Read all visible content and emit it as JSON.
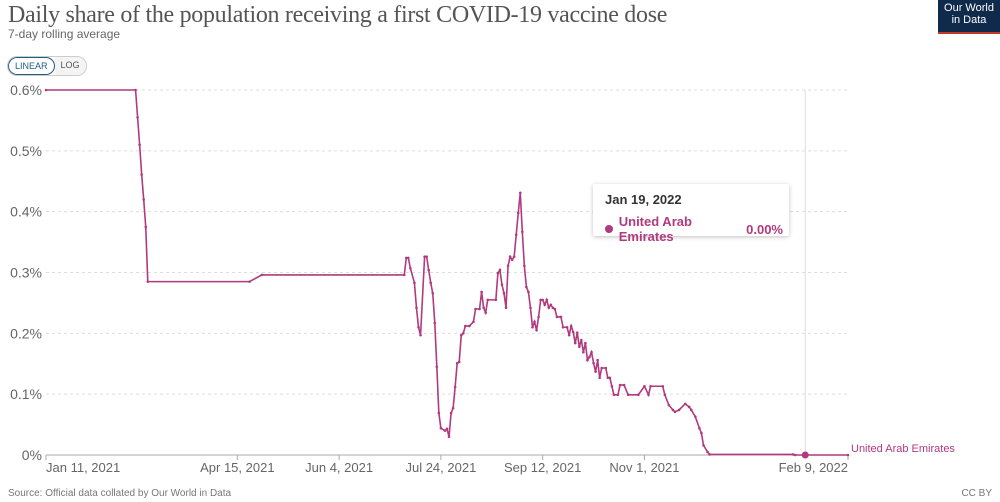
{
  "header": {
    "title": "Daily share of the population receiving a first COVID-19 vaccine dose",
    "subtitle": "7-day rolling average",
    "logo_text": "Our World in Data"
  },
  "scale_toggle": {
    "options": [
      "LINEAR",
      "LOG"
    ],
    "selected": "LINEAR"
  },
  "tooltip": {
    "date": "Jan 19, 2022",
    "series": "United Arab Emirates",
    "value": "0.00%"
  },
  "footer": {
    "source": "Source: Official data collated by Our World in Data",
    "license": "CC BY"
  },
  "colors": {
    "series": "#b13a7e",
    "grid": "#dddddd"
  },
  "chart_data": {
    "type": "line",
    "title": "Daily share of the population receiving a first COVID-19 vaccine dose",
    "subtitle": "7-day rolling average",
    "xlim": [
      "2021-01-11",
      "2022-02-09"
    ],
    "ylim": [
      0,
      0.6
    ],
    "y_unit": "%",
    "y_ticks": [
      0,
      0.1,
      0.2,
      0.3,
      0.4,
      0.5,
      0.6
    ],
    "y_tick_labels": [
      "0%",
      "0.1%",
      "0.2%",
      "0.3%",
      "0.4%",
      "0.5%",
      "0.6%"
    ],
    "x_ticks": [
      "2021-01-11",
      "2021-04-15",
      "2021-06-04",
      "2021-07-24",
      "2021-09-12",
      "2021-11-01",
      "2022-02-09"
    ],
    "x_tick_labels": [
      "Jan 11, 2021",
      "Apr 15, 2021",
      "Jun 4, 2021",
      "Jul 24, 2021",
      "Sep 12, 2021",
      "Nov 1, 2021",
      "Feb 9, 2022"
    ],
    "grid": "horizontal dotted",
    "hover_date": "2022-01-19",
    "series": [
      {
        "name": "United Arab Emirates",
        "points": [
          [
            "2021-01-11",
            0.6
          ],
          [
            "2021-02-24",
            0.6
          ],
          [
            "2021-02-25",
            0.555
          ],
          [
            "2021-02-26",
            0.51
          ],
          [
            "2021-02-27",
            0.461
          ],
          [
            "2021-02-28",
            0.42
          ],
          [
            "2021-03-01",
            0.375
          ],
          [
            "2021-03-02",
            0.285
          ],
          [
            "2021-04-21",
            0.285
          ],
          [
            "2021-04-27",
            0.296
          ],
          [
            "2021-07-06",
            0.296
          ],
          [
            "2021-07-07",
            0.324
          ],
          [
            "2021-07-08",
            0.324
          ],
          [
            "2021-07-09",
            0.307
          ],
          [
            "2021-07-11",
            0.283
          ],
          [
            "2021-07-12",
            0.242
          ],
          [
            "2021-07-13",
            0.21
          ],
          [
            "2021-07-14",
            0.197
          ],
          [
            "2021-07-16",
            0.326
          ],
          [
            "2021-07-17",
            0.326
          ],
          [
            "2021-07-18",
            0.304
          ],
          [
            "2021-07-19",
            0.283
          ],
          [
            "2021-07-20",
            0.266
          ],
          [
            "2021-07-21",
            0.217
          ],
          [
            "2021-07-22",
            0.145
          ],
          [
            "2021-07-23",
            0.069
          ],
          [
            "2021-07-24",
            0.044
          ],
          [
            "2021-07-26",
            0.04
          ],
          [
            "2021-07-27",
            0.043
          ],
          [
            "2021-07-28",
            0.03
          ],
          [
            "2021-07-29",
            0.069
          ],
          [
            "2021-07-30",
            0.077
          ],
          [
            "2021-07-31",
            0.112
          ],
          [
            "2021-08-01",
            0.151
          ],
          [
            "2021-08-02",
            0.153
          ],
          [
            "2021-08-03",
            0.197
          ],
          [
            "2021-08-04",
            0.2
          ],
          [
            "2021-08-05",
            0.212
          ],
          [
            "2021-08-07",
            0.212
          ],
          [
            "2021-08-09",
            0.219
          ],
          [
            "2021-08-10",
            0.24
          ],
          [
            "2021-08-12",
            0.24
          ],
          [
            "2021-08-13",
            0.268
          ],
          [
            "2021-08-14",
            0.242
          ],
          [
            "2021-08-15",
            0.234
          ],
          [
            "2021-08-16",
            0.255
          ],
          [
            "2021-08-20",
            0.255
          ],
          [
            "2021-08-21",
            0.299
          ],
          [
            "2021-08-22",
            0.304
          ],
          [
            "2021-08-23",
            0.28
          ],
          [
            "2021-08-24",
            0.266
          ],
          [
            "2021-08-25",
            0.242
          ],
          [
            "2021-08-26",
            0.311
          ],
          [
            "2021-08-27",
            0.326
          ],
          [
            "2021-08-28",
            0.321
          ],
          [
            "2021-08-29",
            0.326
          ],
          [
            "2021-08-30",
            0.362
          ],
          [
            "2021-08-31",
            0.398
          ],
          [
            "2021-09-01",
            0.431
          ],
          [
            "2021-09-02",
            0.367
          ],
          [
            "2021-09-03",
            0.311
          ],
          [
            "2021-09-04",
            0.276
          ],
          [
            "2021-09-05",
            0.268
          ],
          [
            "2021-09-06",
            0.242
          ],
          [
            "2021-09-07",
            0.21
          ],
          [
            "2021-09-08",
            0.219
          ],
          [
            "2021-09-09",
            0.205
          ],
          [
            "2021-09-10",
            0.227
          ],
          [
            "2021-09-11",
            0.255
          ],
          [
            "2021-09-12",
            0.255
          ],
          [
            "2021-09-13",
            0.247
          ],
          [
            "2021-09-14",
            0.255
          ],
          [
            "2021-09-15",
            0.242
          ],
          [
            "2021-09-16",
            0.247
          ],
          [
            "2021-09-17",
            0.242
          ],
          [
            "2021-09-18",
            0.24
          ],
          [
            "2021-09-19",
            0.227
          ],
          [
            "2021-09-21",
            0.227
          ],
          [
            "2021-09-22",
            0.21
          ],
          [
            "2021-09-24",
            0.21
          ],
          [
            "2021-09-25",
            0.197
          ],
          [
            "2021-09-26",
            0.212
          ],
          [
            "2021-09-27",
            0.202
          ],
          [
            "2021-09-28",
            0.184
          ],
          [
            "2021-09-29",
            0.201
          ],
          [
            "2021-09-30",
            0.178
          ],
          [
            "2021-10-01",
            0.189
          ],
          [
            "2021-10-02",
            0.169
          ],
          [
            "2021-10-03",
            0.184
          ],
          [
            "2021-10-04",
            0.156
          ],
          [
            "2021-10-05",
            0.161
          ],
          [
            "2021-10-06",
            0.169
          ],
          [
            "2021-10-07",
            0.151
          ],
          [
            "2021-10-08",
            0.137
          ],
          [
            "2021-10-09",
            0.156
          ],
          [
            "2021-10-10",
            0.127
          ],
          [
            "2021-10-11",
            0.143
          ],
          [
            "2021-10-13",
            0.143
          ],
          [
            "2021-10-14",
            0.127
          ],
          [
            "2021-10-15",
            0.127
          ],
          [
            "2021-10-16",
            0.113
          ],
          [
            "2021-10-17",
            0.099
          ],
          [
            "2021-10-19",
            0.099
          ],
          [
            "2021-10-20",
            0.115
          ],
          [
            "2021-10-22",
            0.115
          ],
          [
            "2021-10-24",
            0.099
          ],
          [
            "2021-10-29",
            0.099
          ],
          [
            "2021-11-01",
            0.113
          ],
          [
            "2021-11-03",
            0.099
          ],
          [
            "2021-11-04",
            0.113
          ],
          [
            "2021-11-10",
            0.113
          ],
          [
            "2021-11-11",
            0.099
          ],
          [
            "2021-11-13",
            0.082
          ],
          [
            "2021-11-15",
            0.074
          ],
          [
            "2021-11-16",
            0.071
          ],
          [
            "2021-11-18",
            0.074
          ],
          [
            "2021-11-21",
            0.084
          ],
          [
            "2021-11-23",
            0.079
          ],
          [
            "2021-11-24",
            0.074
          ],
          [
            "2021-11-26",
            0.063
          ],
          [
            "2021-11-28",
            0.044
          ],
          [
            "2021-11-29",
            0.036
          ],
          [
            "2021-11-30",
            0.016
          ],
          [
            "2021-12-02",
            0.005
          ],
          [
            "2021-12-03",
            0.001
          ],
          [
            "2022-01-13",
            0.001
          ],
          [
            "2022-01-14",
            0.0
          ],
          [
            "2022-02-09",
            0.0
          ]
        ]
      }
    ]
  }
}
